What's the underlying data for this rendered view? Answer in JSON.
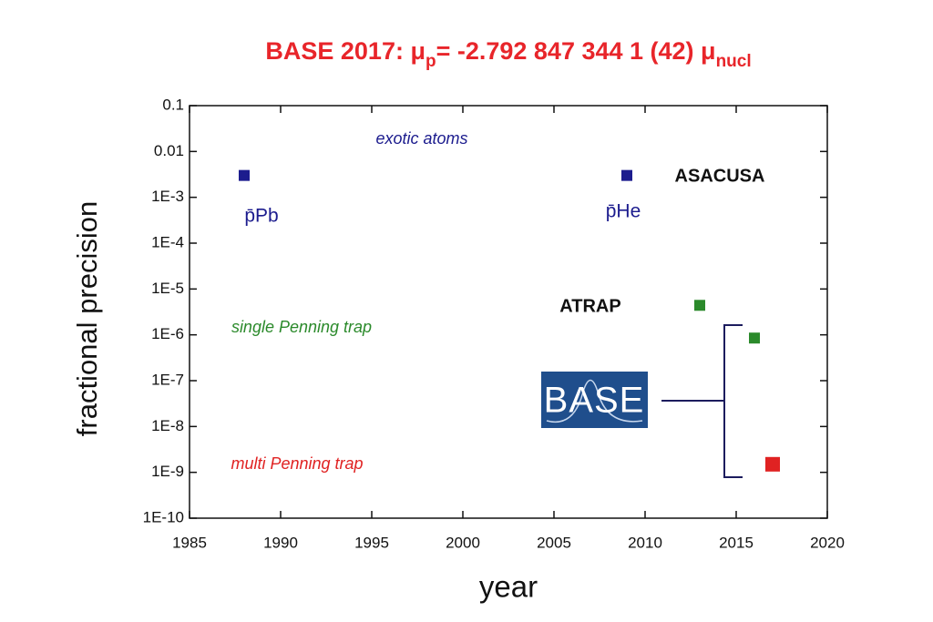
{
  "chart_data": {
    "type": "scatter",
    "title": [
      "BASE 2017: μ",
      "p",
      "= -2.792 847 344 1 (42) μ",
      "nucl"
    ],
    "x_label": "year",
    "y_label": "fractional precision",
    "xlim": [
      1985,
      2020
    ],
    "xticks": [
      1985,
      1990,
      1995,
      2000,
      2005,
      2010,
      2015,
      2020
    ],
    "ylim": [
      1e-10,
      0.1
    ],
    "yscale": "log",
    "yticks": [
      {
        "value": 1e-10,
        "label": "1E-10"
      },
      {
        "value": 1e-09,
        "label": "1E-9"
      },
      {
        "value": 1e-08,
        "label": "1E-8"
      },
      {
        "value": 1e-07,
        "label": "1E-7"
      },
      {
        "value": 1e-06,
        "label": "1E-6"
      },
      {
        "value": 1e-05,
        "label": "1E-5"
      },
      {
        "value": 0.0001,
        "label": "1E-4"
      },
      {
        "value": 0.001,
        "label": "1E-3"
      },
      0.01,
      0.1
    ],
    "series": [
      {
        "name": "exotic atoms",
        "color": "#1c1c8e",
        "x": [
          1988,
          2009
        ],
        "values": [
          0.003,
          0.003
        ]
      },
      {
        "name": "single Penning trap",
        "color": "#2b8a2b",
        "x": [
          2013,
          2016
        ],
        "values": [
          4.4e-06,
          8.5e-07
        ]
      },
      {
        "name": "multi Penning trap",
        "color": "#e02222",
        "x": [
          2017
        ],
        "values": [
          1.5e-09
        ]
      }
    ],
    "annotations": [
      "p̄Pb",
      "p̄He",
      "ASACUSA",
      "ATRAP"
    ],
    "logo": "BASE"
  }
}
